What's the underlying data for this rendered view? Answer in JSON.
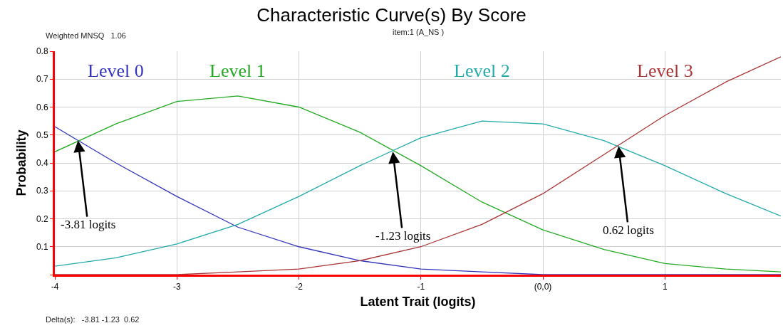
{
  "chart_data": {
    "type": "line",
    "title": "Characteristic Curve(s) By Score",
    "subtitle": "item:1 (A_NS )",
    "xlabel": "Latent Trait (logits)",
    "ylabel": "Probability",
    "x": [
      -4,
      -3.5,
      -3,
      -2.5,
      -2,
      -1.5,
      -1,
      -0.5,
      0,
      0.5,
      1,
      1.5,
      1.95
    ],
    "series": [
      {
        "name": "Level 0",
        "color": "#3333bb",
        "values": [
          0.53,
          0.4,
          0.28,
          0.17,
          0.1,
          0.05,
          0.02,
          0.01,
          0,
          0,
          0,
          0,
          0
        ]
      },
      {
        "name": "Level 1",
        "color": "#22aa22",
        "values": [
          0.44,
          0.54,
          0.62,
          0.64,
          0.6,
          0.51,
          0.39,
          0.26,
          0.16,
          0.09,
          0.04,
          0.02,
          0.01
        ]
      },
      {
        "name": "Level 2",
        "color": "#22aaaa",
        "values": [
          0.03,
          0.06,
          0.11,
          0.18,
          0.28,
          0.39,
          0.49,
          0.55,
          0.54,
          0.48,
          0.39,
          0.29,
          0.21
        ]
      },
      {
        "name": "Level 3",
        "color": "#aa3333",
        "values": [
          0,
          0,
          0,
          0.01,
          0.02,
          0.05,
          0.1,
          0.18,
          0.29,
          0.43,
          0.57,
          0.69,
          0.78
        ]
      }
    ],
    "xlim": [
      -4,
      1.95
    ],
    "xticks": [
      -4,
      -3,
      -2,
      -1,
      {
        "value": 0,
        "label": "(0,0)"
      },
      1
    ],
    "ylim": [
      0,
      0.8
    ],
    "yticks": [
      {
        "value": 0,
        "label": null
      },
      0.1,
      0.2,
      0.3,
      0.4,
      0.5,
      0.6,
      0.7,
      0.8
    ],
    "grid": true,
    "legend": false,
    "marker": "none",
    "line_style": "solid",
    "annotations": [
      "Weighted MNSQ   1.06",
      "Delta(s):   -3.81 -1.23  0.62",
      {
        "text": "-3.81 logits",
        "x": -3.81,
        "y": 0.48
      },
      {
        "text": "-1.23 logits",
        "x": -1.23,
        "y": 0.44
      },
      {
        "text": "0.62 logits",
        "x": 0.62,
        "y": 0.46
      }
    ]
  }
}
